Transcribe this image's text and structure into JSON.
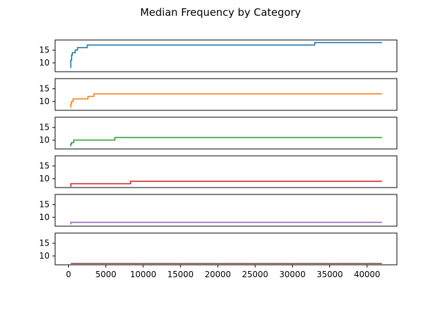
{
  "chart_data": {
    "type": "line",
    "title": "Median Frequency by Category",
    "xlabel": "",
    "ylabel": "",
    "x_ticks": [
      0,
      5000,
      10000,
      15000,
      20000,
      25000,
      30000,
      35000,
      40000
    ],
    "x_tick_labels": [
      "0",
      "5000",
      "10000",
      "15000",
      "20000",
      "25000",
      "30000",
      "35000",
      "40000"
    ],
    "y_ticks": [
      10,
      15
    ],
    "y_tick_labels": [
      "10",
      "15"
    ],
    "xlim": [
      -1800,
      44000
    ],
    "ylim": [
      6.5,
      19
    ],
    "grid": false,
    "legend": "none",
    "series": [
      {
        "color": "#1f77b4",
        "step_points": [
          [
            300,
            8
          ],
          [
            300,
            11
          ],
          [
            400,
            13
          ],
          [
            500,
            14
          ],
          [
            900,
            15
          ],
          [
            1200,
            16
          ],
          [
            2500,
            17
          ],
          [
            33000,
            18
          ],
          [
            42000,
            18
          ]
        ]
      },
      {
        "color": "#ff7f0e",
        "step_points": [
          [
            300,
            7.5
          ],
          [
            300,
            9
          ],
          [
            400,
            10
          ],
          [
            600,
            11
          ],
          [
            2600,
            12
          ],
          [
            3400,
            13
          ],
          [
            42000,
            13
          ]
        ]
      },
      {
        "color": "#2ca02c",
        "step_points": [
          [
            300,
            7.5
          ],
          [
            300,
            8.5
          ],
          [
            400,
            9
          ],
          [
            700,
            10
          ],
          [
            6200,
            11
          ],
          [
            42000,
            11
          ]
        ]
      },
      {
        "color": "#d62728",
        "step_points": [
          [
            300,
            6.8
          ],
          [
            300,
            8
          ],
          [
            8300,
            9
          ],
          [
            42000,
            9
          ]
        ]
      },
      {
        "color": "#9467bd",
        "step_points": [
          [
            300,
            7.2
          ],
          [
            300,
            8
          ],
          [
            42000,
            8
          ]
        ]
      },
      {
        "color": "#8c564b",
        "step_points": [
          [
            300,
            7
          ],
          [
            42000,
            7
          ]
        ]
      }
    ]
  }
}
